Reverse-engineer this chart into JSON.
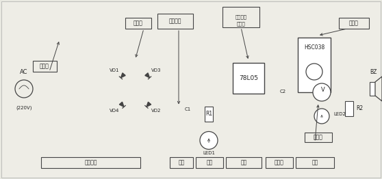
{
  "bg_color": "#e8e8e0",
  "line_color": "#444444",
  "text_color": "#222222",
  "fig_width": 5.58,
  "fig_height": 2.62,
  "dpi": 100,
  "xlim": [
    0,
    558
  ],
  "ylim": [
    0,
    262
  ]
}
